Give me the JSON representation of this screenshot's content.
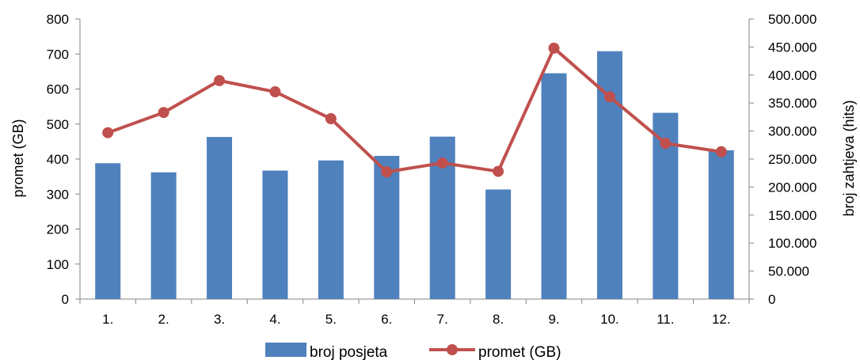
{
  "chart_data": {
    "type": "bar",
    "categories": [
      "1.",
      "2.",
      "3.",
      "4.",
      "5.",
      "6.",
      "7.",
      "8.",
      "9.",
      "10.",
      "11.",
      "12."
    ],
    "series": [
      {
        "name": "broj posjeta",
        "type": "bar",
        "axis": "left",
        "color": "#4F81BD",
        "values": [
          388,
          362,
          463,
          367,
          396,
          409,
          464,
          313,
          645,
          708,
          532,
          425
        ]
      },
      {
        "name": "promet (GB)",
        "type": "line",
        "axis": "right",
        "color": "#C0504D",
        "values": [
          297000,
          333000,
          390000,
          370000,
          322000,
          227000,
          243000,
          228000,
          448000,
          361000,
          278000,
          263000
        ]
      }
    ],
    "ylabel": "promet (GB)",
    "y2label": "broj zahtjeva (hits)",
    "ylim": [
      0,
      800
    ],
    "y2lim": [
      0,
      500000
    ],
    "yticks": [
      "0",
      "100",
      "200",
      "300",
      "400",
      "500",
      "600",
      "700",
      "800"
    ],
    "y2ticks": [
      "0",
      "50.000",
      "100.000",
      "150.000",
      "200.000",
      "250.000",
      "300.000",
      "350.000",
      "400.000",
      "450.000",
      "500.000"
    ],
    "grid": false,
    "legend_position": "bottom"
  }
}
